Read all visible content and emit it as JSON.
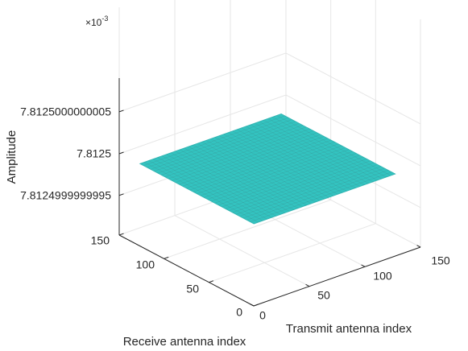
{
  "chart_data": {
    "type": "surface",
    "title": "",
    "xlabel": "Transmit antenna index",
    "ylabel": "Receive antenna index",
    "zlabel": "Amplitude",
    "z_exponent": "×10",
    "z_exponent_power": "-3",
    "xlim": [
      0,
      150
    ],
    "ylim": [
      0,
      150
    ],
    "x_ticks": [
      "0",
      "50",
      "100",
      "150"
    ],
    "y_ticks": [
      "0",
      "50",
      "100",
      "150"
    ],
    "z_ticks": [
      "7.8124999999995",
      "7.8125",
      "7.8125000000005"
    ],
    "surface": {
      "x_range": [
        1,
        128
      ],
      "y_range": [
        1,
        128
      ],
      "z_value": 0.0078125,
      "color": "#33c3c0"
    },
    "grid": true,
    "view": "3d"
  }
}
